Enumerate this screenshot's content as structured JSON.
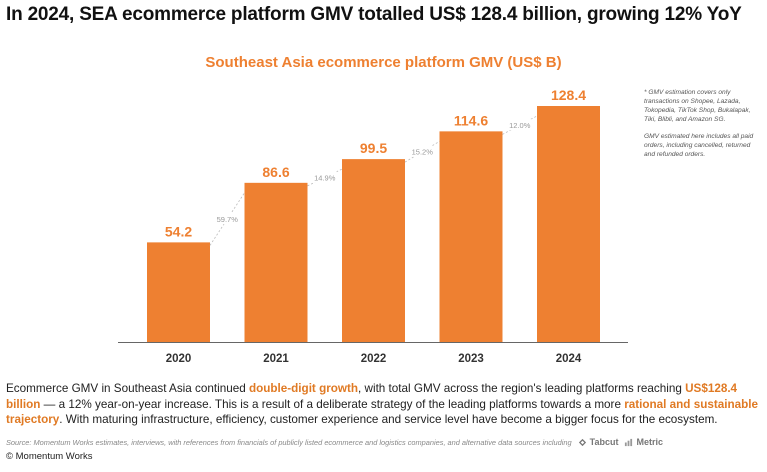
{
  "headline": "In 2024, SEA ecommerce platform GMV totalled US$ 128.4 billion, growing 12% YoY",
  "chart_data": {
    "type": "bar",
    "title": "Southeast Asia ecommerce platform GMV (US$ B)",
    "categories": [
      "2020",
      "2021",
      "2022",
      "2023",
      "2024"
    ],
    "values": [
      54.2,
      86.6,
      99.5,
      114.6,
      128.4
    ],
    "value_labels": [
      "54.2",
      "86.6",
      "99.5",
      "114.6",
      "128.4"
    ],
    "growth_labels": [
      "59.7%",
      "14.9%",
      "15.2%",
      "12.0%"
    ],
    "ylim": [
      0,
      128.4
    ],
    "bar_color": "#ee8031",
    "label_color": "#ee8031",
    "growth_label_color": "#999999",
    "grid": false,
    "legend": "none"
  },
  "notes": [
    "* GMV estimation covers only transactions on Shopee, Lazada, Tokopedia, TikTok Shop, Bukalapak, Tiki, Blibli, and Amazon SG.",
    "GMV estimated here includes all paid orders, including cancelled, returned and refunded orders."
  ],
  "body": {
    "part1": "Ecommerce GMV in Southeast Asia continued ",
    "hl1": "double-digit growth",
    "part2": ", with total GMV across the region's leading platforms reaching ",
    "hl2": "US$128.4 billion",
    "part3": " — a 12% year-on-year increase. This is a result of a deliberate strategy of the leading platforms towards a more ",
    "hl3": "rational and sustainable trajectory",
    "part4": ". With maturing infrastructure, efficiency, customer experience and service level have become a bigger focus for the ecosystem."
  },
  "source": {
    "text": "Source: Momentum Works estimates, interviews, with references from financials of publicly listed ecommerce and logistics companies,  and alternative data sources including",
    "brand1": "Tabcut",
    "brand2": "Metric"
  },
  "copyright": "© Momentum Works",
  "colors": {
    "accent": "#ee8031",
    "highlight": "#e07a24"
  }
}
